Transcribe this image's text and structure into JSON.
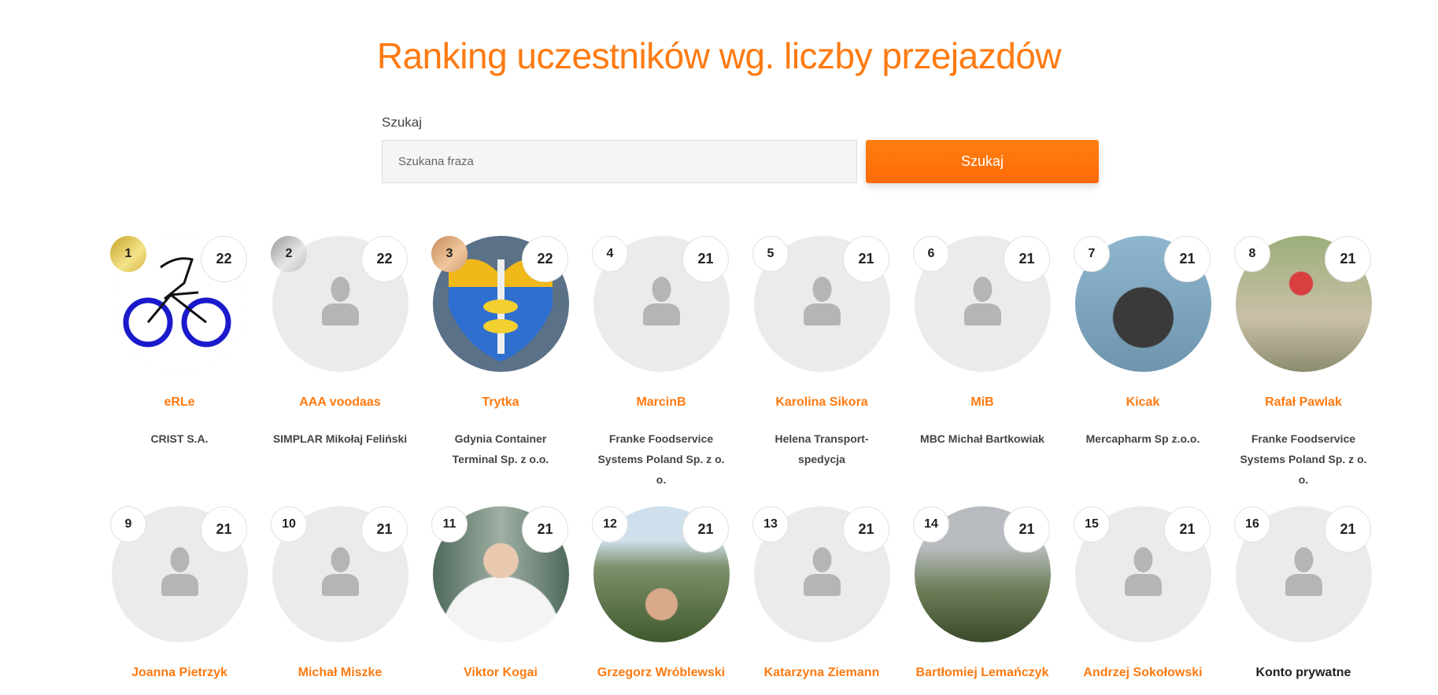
{
  "page": {
    "title": "Ranking uczestników wg. liczby przejazdów"
  },
  "search": {
    "label": "Szukaj",
    "placeholder": "Szukana fraza",
    "value": "",
    "button_label": "Szukaj"
  },
  "colors": {
    "accent": "#ff7a11",
    "placeholder_bg": "#ebebeb"
  },
  "participants": [
    {
      "rank": "1",
      "rides": "22",
      "name": "eRLe",
      "company": "CRIST S.A.",
      "avatar": "bicycle-drawing",
      "medal": "gold"
    },
    {
      "rank": "2",
      "rides": "22",
      "name": "AAA voodaas",
      "company": "SIMPLAR Mikołaj Feliński",
      "avatar": "placeholder",
      "medal": "silver"
    },
    {
      "rank": "3",
      "rides": "22",
      "name": "Trytka",
      "company": "Gdynia Container Terminal Sp. z o.o.",
      "avatar": "gdynia-coat-of-arms",
      "medal": "bronze"
    },
    {
      "rank": "4",
      "rides": "21",
      "name": "MarcinB",
      "company": "Franke Foodservice Systems Poland Sp. z o. o.",
      "avatar": "placeholder"
    },
    {
      "rank": "5",
      "rides": "21",
      "name": "Karolina Sikora",
      "company": "Helena Transport-spedycja",
      "avatar": "placeholder"
    },
    {
      "rank": "6",
      "rides": "21",
      "name": "MiB",
      "company": "MBC Michał Bartkowiak",
      "avatar": "placeholder"
    },
    {
      "rank": "7",
      "rides": "21",
      "name": "Kicak",
      "company": "Mercapharm Sp z.o.o.",
      "avatar": "photo"
    },
    {
      "rank": "8",
      "rides": "21",
      "name": "Rafał Pawlak",
      "company": "Franke Foodservice Systems Poland Sp. z o. o.",
      "avatar": "photo"
    },
    {
      "rank": "9",
      "rides": "21",
      "name": "Joanna Pietrzyk",
      "avatar": "placeholder"
    },
    {
      "rank": "10",
      "rides": "21",
      "name": "Michał Miszke",
      "avatar": "placeholder"
    },
    {
      "rank": "11",
      "rides": "21",
      "name": "Viktor Kogai",
      "avatar": "photo"
    },
    {
      "rank": "12",
      "rides": "21",
      "name": "Grzegorz Wróblewski",
      "avatar": "photo"
    },
    {
      "rank": "13",
      "rides": "21",
      "name": "Katarzyna Ziemann",
      "avatar": "placeholder"
    },
    {
      "rank": "14",
      "rides": "21",
      "name": "Bartłomiej Lemańczyk",
      "avatar": "photo"
    },
    {
      "rank": "15",
      "rides": "21",
      "name": "Andrzej Sokołowski",
      "avatar": "placeholder"
    },
    {
      "rank": "16",
      "rides": "21",
      "name": "Konto prywatne",
      "avatar": "placeholder",
      "private": true
    }
  ]
}
